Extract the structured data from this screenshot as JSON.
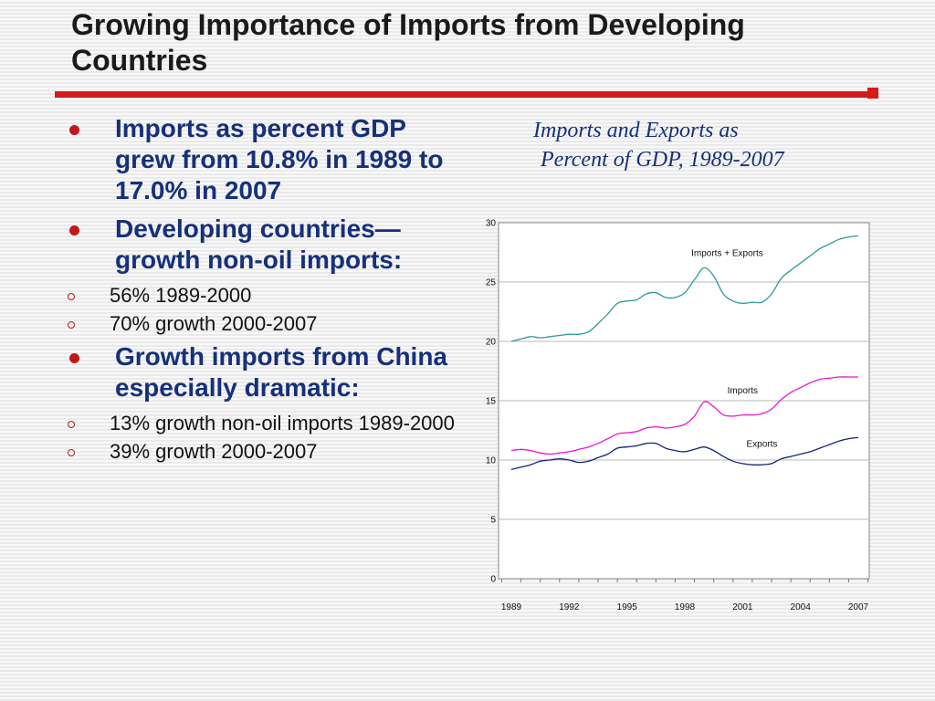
{
  "slide": {
    "title": "Growing Importance of Imports from Developing Countries",
    "accent_color": "#d41a1a",
    "bullet_color": "#c21818",
    "heading_text_color": "#16307a"
  },
  "bullets": [
    {
      "text": "Imports as percent GDP grew from 10.8% in 1989 to 17.0% in 2007",
      "sub": []
    },
    {
      "text": "Developing countries—growth non-oil imports:",
      "sub": [
        "56% 1989-2000",
        "70% growth 2000-2007"
      ]
    },
    {
      "text": "Growth imports from China especially dramatic:",
      "sub": [
        "13% growth non-oil imports 1989-2000",
        "39% growth 2000-2007"
      ]
    }
  ],
  "chart_title_lines": [
    "Imports and Exports as",
    "Percent of GDP, 1989-2007"
  ],
  "chart_data": {
    "type": "line",
    "title": "Imports and Exports as Percent of GDP, 1989-2007",
    "xlabel": "",
    "ylabel": "",
    "xlim": [
      1989,
      2007
    ],
    "ylim": [
      0,
      30
    ],
    "y_ticks": [
      "0",
      "5",
      "10",
      "15",
      "20",
      "25",
      "30"
    ],
    "x_ticks": [
      "1989",
      "1992",
      "1995",
      "1998",
      "2001",
      "2004",
      "2007"
    ],
    "grid": true,
    "legend": "none",
    "x": [
      1989,
      1989.5,
      1990,
      1990.5,
      1991,
      1991.5,
      1992,
      1992.5,
      1993,
      1993.5,
      1994,
      1994.5,
      1995,
      1995.5,
      1996,
      1996.5,
      1997,
      1997.5,
      1998,
      1998.5,
      1999,
      1999.5,
      2000,
      2000.5,
      2001,
      2001.5,
      2002,
      2002.5,
      2003,
      2003.5,
      2004,
      2004.5,
      2005,
      2005.5,
      2006,
      2006.5,
      2007
    ],
    "series": [
      {
        "name": "Imports + Exports",
        "color": "#2a9a9a",
        "values": [
          20.0,
          20.2,
          20.4,
          20.3,
          20.4,
          20.5,
          20.6,
          20.6,
          20.8,
          21.5,
          22.3,
          23.2,
          23.4,
          23.5,
          24.0,
          24.1,
          23.7,
          23.7,
          24.1,
          25.2,
          26.2,
          25.5,
          24.0,
          23.4,
          23.2,
          23.3,
          23.3,
          24.0,
          25.3,
          26.0,
          26.6,
          27.2,
          27.8,
          28.2,
          28.6,
          28.8,
          28.9
        ]
      },
      {
        "name": "Imports",
        "color": "#e617d6",
        "values": [
          10.8,
          10.9,
          10.8,
          10.6,
          10.5,
          10.6,
          10.7,
          10.9,
          11.1,
          11.4,
          11.8,
          12.2,
          12.3,
          12.4,
          12.7,
          12.8,
          12.7,
          12.8,
          13.0,
          13.7,
          14.9,
          14.5,
          13.8,
          13.7,
          13.8,
          13.8,
          13.9,
          14.3,
          15.1,
          15.7,
          16.1,
          16.5,
          16.8,
          16.9,
          17.0,
          17.0,
          17.0
        ]
      },
      {
        "name": "Exports",
        "color": "#16237a",
        "values": [
          9.2,
          9.4,
          9.6,
          9.9,
          10.0,
          10.1,
          10.0,
          9.8,
          9.9,
          10.2,
          10.5,
          11.0,
          11.1,
          11.2,
          11.4,
          11.4,
          11.0,
          10.8,
          10.7,
          10.9,
          11.1,
          10.8,
          10.3,
          9.9,
          9.7,
          9.6,
          9.6,
          9.7,
          10.1,
          10.3,
          10.5,
          10.7,
          11.0,
          11.3,
          11.6,
          11.8,
          11.9
        ]
      }
    ],
    "annotations": [
      {
        "text": "Imports + Exports",
        "x": 2000.2,
        "y": 27.2
      },
      {
        "text": "Imports",
        "x": 2001.0,
        "y": 15.6
      },
      {
        "text": "Exports",
        "x": 2002.0,
        "y": 11.1
      }
    ]
  }
}
